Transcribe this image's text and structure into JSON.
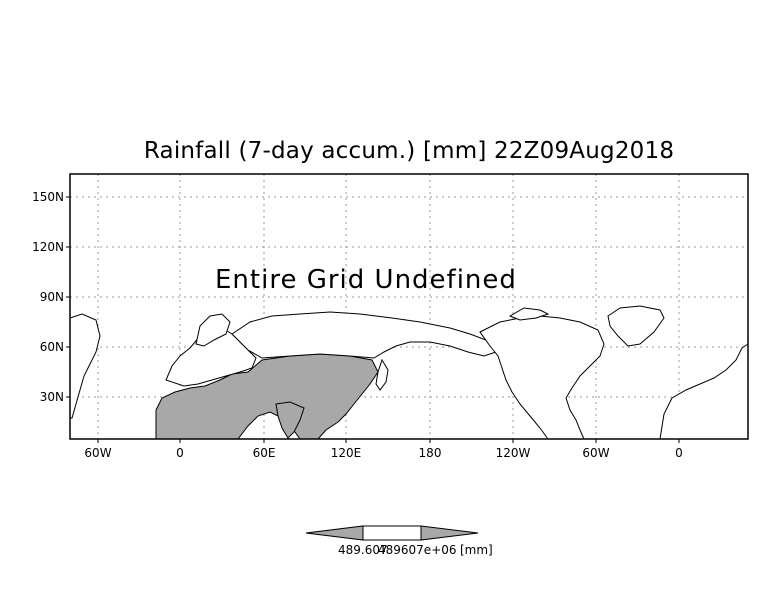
{
  "title": "Rainfall (7-day accum.) [mm] 22Z09Aug2018",
  "overlay_message": "Entire Grid Undefined",
  "axes": {
    "x_ticks": [
      "60W",
      "0",
      "60E",
      "120E",
      "180",
      "120W",
      "60W",
      "0"
    ],
    "y_ticks": [
      "150N",
      "120N",
      "90N",
      "60N",
      "30N"
    ]
  },
  "colorbar": {
    "min_label": "489.607",
    "max_label": "489607e+06",
    "unit_label": "[mm]"
  },
  "colors": {
    "land_fill": "#a8a8a8",
    "coastline": "#000000",
    "grid": "#9a9a9a"
  }
}
